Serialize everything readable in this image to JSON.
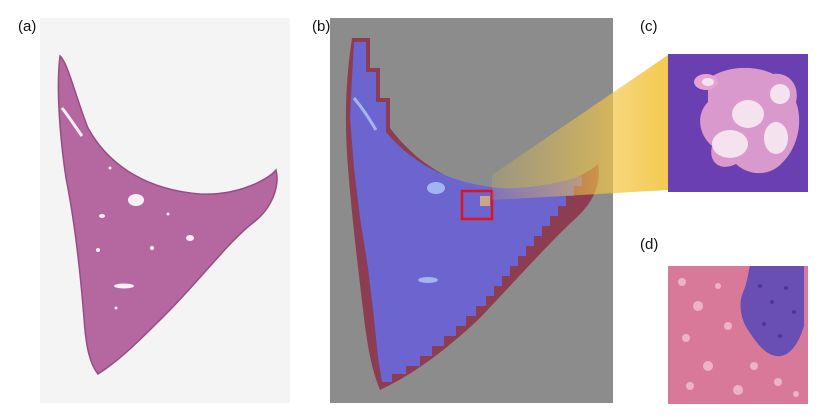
{
  "panels": {
    "a": {
      "label": "(a)"
    },
    "b": {
      "label": "(b)"
    },
    "c": {
      "label": "(c)"
    },
    "d": {
      "label": "(d)"
    }
  },
  "colors": {
    "tissue_pink": "#b5679f",
    "tissue_edge": "#9a4b86",
    "overlay_grey": "#8c8c8c",
    "overlay_blue": "#6a66d6",
    "overlay_red": "#8c3d52",
    "highlight_box": "#e0151b",
    "zoom_wedge": "#f2c646",
    "he_pink": "#d9799a",
    "he_purple": "#6a4ab6"
  }
}
